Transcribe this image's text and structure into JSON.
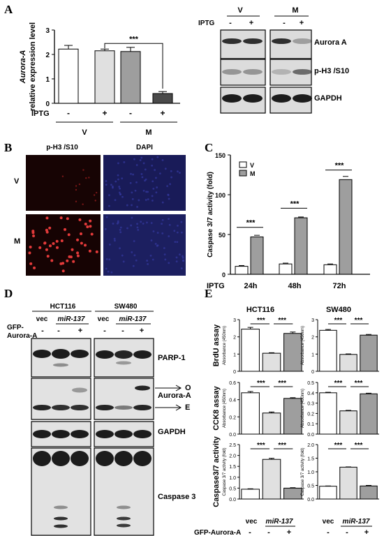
{
  "panels": {
    "A": {
      "label": "A",
      "chart_data": {
        "type": "bar",
        "ylabel_italic": "Aurora-A",
        "ylabel": "relative expression level",
        "ylim": [
          0,
          3
        ],
        "yticks": [
          "0",
          "1",
          "2",
          "3"
        ],
        "values": [
          2.22,
          2.15,
          2.12,
          0.4
        ],
        "errors": [
          0.15,
          0.07,
          0.17,
          0.08
        ],
        "colors": [
          "#ffffff",
          "#e0e0e0",
          "#9e9e9e",
          "#4a4a4a"
        ],
        "significance": "***",
        "treatment_label": "IPTG",
        "treatment_values": [
          "-",
          "+",
          "-",
          "+"
        ],
        "groups": [
          "V",
          "M"
        ]
      },
      "blot": {
        "groups": [
          "V",
          "M"
        ],
        "treatment_label": "IPTG",
        "treatment_values": [
          "-",
          "+",
          "-",
          "+"
        ],
        "rows": [
          "Aurora A",
          "p-H3 /S10",
          "GAPDH"
        ]
      }
    },
    "B": {
      "label": "B",
      "columns": [
        "p-H3 /S10",
        "DAPI"
      ],
      "rows": [
        "V",
        "M"
      ]
    },
    "C": {
      "label": "C",
      "chart_data": {
        "type": "bar",
        "ylabel": "Caspase 3/7 activity (fold)",
        "ylim": [
          0,
          150
        ],
        "yticks": [
          "0",
          "50",
          "100",
          "150"
        ],
        "treatment_label": "IPTG",
        "categories": [
          "24h",
          "48h",
          "72h"
        ],
        "legend": [
          "V",
          "M"
        ],
        "series": [
          {
            "name": "V",
            "values": [
              10,
              13,
              12
            ],
            "errors": [
              1,
              1,
              1
            ],
            "color": "#ffffff"
          },
          {
            "name": "M",
            "values": [
              47,
              71,
              119
            ],
            "errors": [
              2,
              1,
              4
            ],
            "color": "#9e9e9e"
          }
        ],
        "significance": [
          "***",
          "***",
          "***"
        ]
      }
    },
    "D": {
      "label": "D",
      "cell_lines": [
        "HCT116",
        "SW480"
      ],
      "lane_labels": [
        "vec",
        "miR-137"
      ],
      "gfp_label_line1": "GFP-",
      "gfp_label_line2": "Aurora-A",
      "treatment_values": [
        "-",
        "-",
        "+"
      ],
      "rows": [
        "PARP-1",
        "Aurora-A",
        "GAPDH",
        "Caspase 3"
      ],
      "arrows": [
        "O",
        "E"
      ]
    },
    "E": {
      "label": "E",
      "cell_lines": [
        "HCT116",
        "SW480"
      ],
      "row_titles": [
        "BrdU assay",
        "CCK8 assay",
        "Caspase3/7 activity"
      ],
      "row_units": [
        "Absorbance (450nm)",
        "Absorbance (450nm)",
        "Caspase 3/7 activity (fold)"
      ],
      "significance": "***",
      "lane_labels": [
        "vec",
        "miR-137"
      ],
      "treatment_label": "GFP-Aurora-A",
      "treatment_values": [
        "-",
        "-",
        "+"
      ],
      "colors": [
        "#ffffff",
        "#e0e0e0",
        "#9e9e9e"
      ],
      "chart_data": [
        {
          "type": "bar",
          "title": "BrdU assay",
          "cell_line": "HCT116",
          "ylim": [
            0,
            3
          ],
          "yticks": [
            "0",
            "1",
            "2",
            "3"
          ],
          "values": [
            2.45,
            1.05,
            2.2
          ],
          "errors": [
            0.1,
            0.03,
            0.08
          ]
        },
        {
          "type": "bar",
          "title": "BrdU assay",
          "cell_line": "SW480",
          "ylim": [
            0,
            3
          ],
          "yticks": [
            "0",
            "1",
            "2",
            "3"
          ],
          "values": [
            2.38,
            0.98,
            2.1
          ],
          "errors": [
            0.05,
            0.03,
            0.04
          ]
        },
        {
          "type": "bar",
          "title": "CCK8 assay",
          "cell_line": "HCT116",
          "ylim": [
            0,
            0.6
          ],
          "yticks": [
            "0.0",
            "0.2",
            "0.4",
            "0.6"
          ],
          "values": [
            0.48,
            0.245,
            0.415
          ],
          "errors": [
            0.015,
            0.012,
            0.008
          ]
        },
        {
          "type": "bar",
          "title": "CCK8 assay",
          "cell_line": "SW480",
          "ylim": [
            0,
            0.5
          ],
          "yticks": [
            "0.0",
            "0.1",
            "0.2",
            "0.3",
            "0.4",
            "0.5"
          ],
          "values": [
            0.4,
            0.225,
            0.39
          ],
          "errors": [
            0.005,
            0.005,
            0.006
          ]
        },
        {
          "type": "bar",
          "title": "Caspase3/7 activity",
          "cell_line": "HCT116",
          "ylim": [
            0,
            2.5
          ],
          "yticks": [
            "0.0",
            "0.5",
            "1.0",
            "1.5",
            "2.0",
            "2.5"
          ],
          "values": [
            0.45,
            1.82,
            0.5
          ],
          "errors": [
            0.02,
            0.05,
            0.02
          ]
        },
        {
          "type": "bar",
          "title": "Caspase3/7 activity",
          "cell_line": "SW480",
          "ylim": [
            0,
            2.0
          ],
          "yticks": [
            "0.0",
            "0.5",
            "1.0",
            "1.5",
            "2.0"
          ],
          "values": [
            0.47,
            1.17,
            0.48
          ],
          "errors": [
            0.01,
            0.01,
            0.02
          ]
        }
      ]
    }
  }
}
